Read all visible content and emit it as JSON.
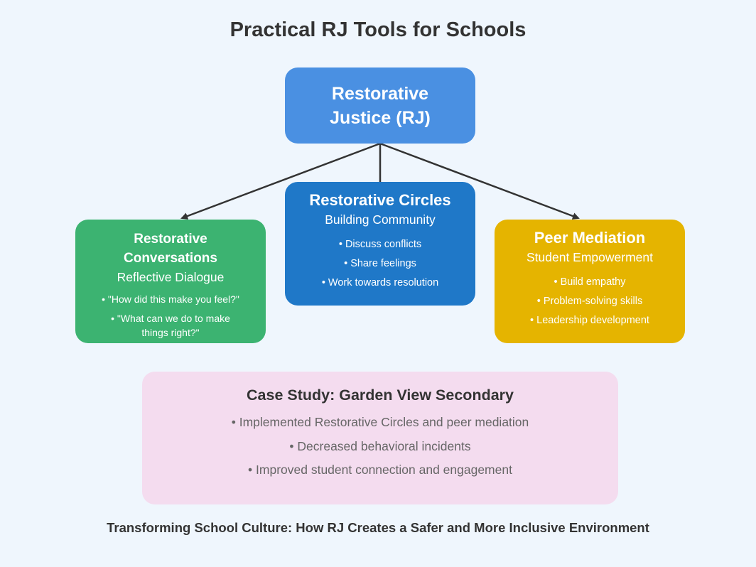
{
  "title": "Practical RJ Tools for Schools",
  "root": {
    "label": "Restorative Justice (RJ)",
    "color": "#4a90e2"
  },
  "nodes": [
    {
      "title": "Restorative Conversations",
      "subtitle": "Reflective Dialogue",
      "color": "#3cb371",
      "bullets": [
        "• \"How did this make you feel?\"",
        "• \"What can we do to make things right?\""
      ]
    },
    {
      "title": "Restorative Circles",
      "subtitle": "Building Community",
      "color": "#1f78c8",
      "bullets": [
        "• Discuss conflicts",
        "• Share feelings",
        "• Work towards resolution"
      ]
    },
    {
      "title": "Peer Mediation",
      "subtitle": "Student Empowerment",
      "color": "#e5b400",
      "bullets": [
        "• Build empathy",
        "• Problem-solving skills",
        "• Leadership development"
      ]
    }
  ],
  "case_study": {
    "title": "Case Study: Garden View Secondary",
    "items": [
      "• Implemented Restorative Circles and peer mediation",
      "• Decreased behavioral incidents",
      "• Improved student connection and engagement"
    ],
    "color": "#f4dcef"
  },
  "footer": "Transforming School Culture: How RJ Creates a Safer and More Inclusive Environment"
}
